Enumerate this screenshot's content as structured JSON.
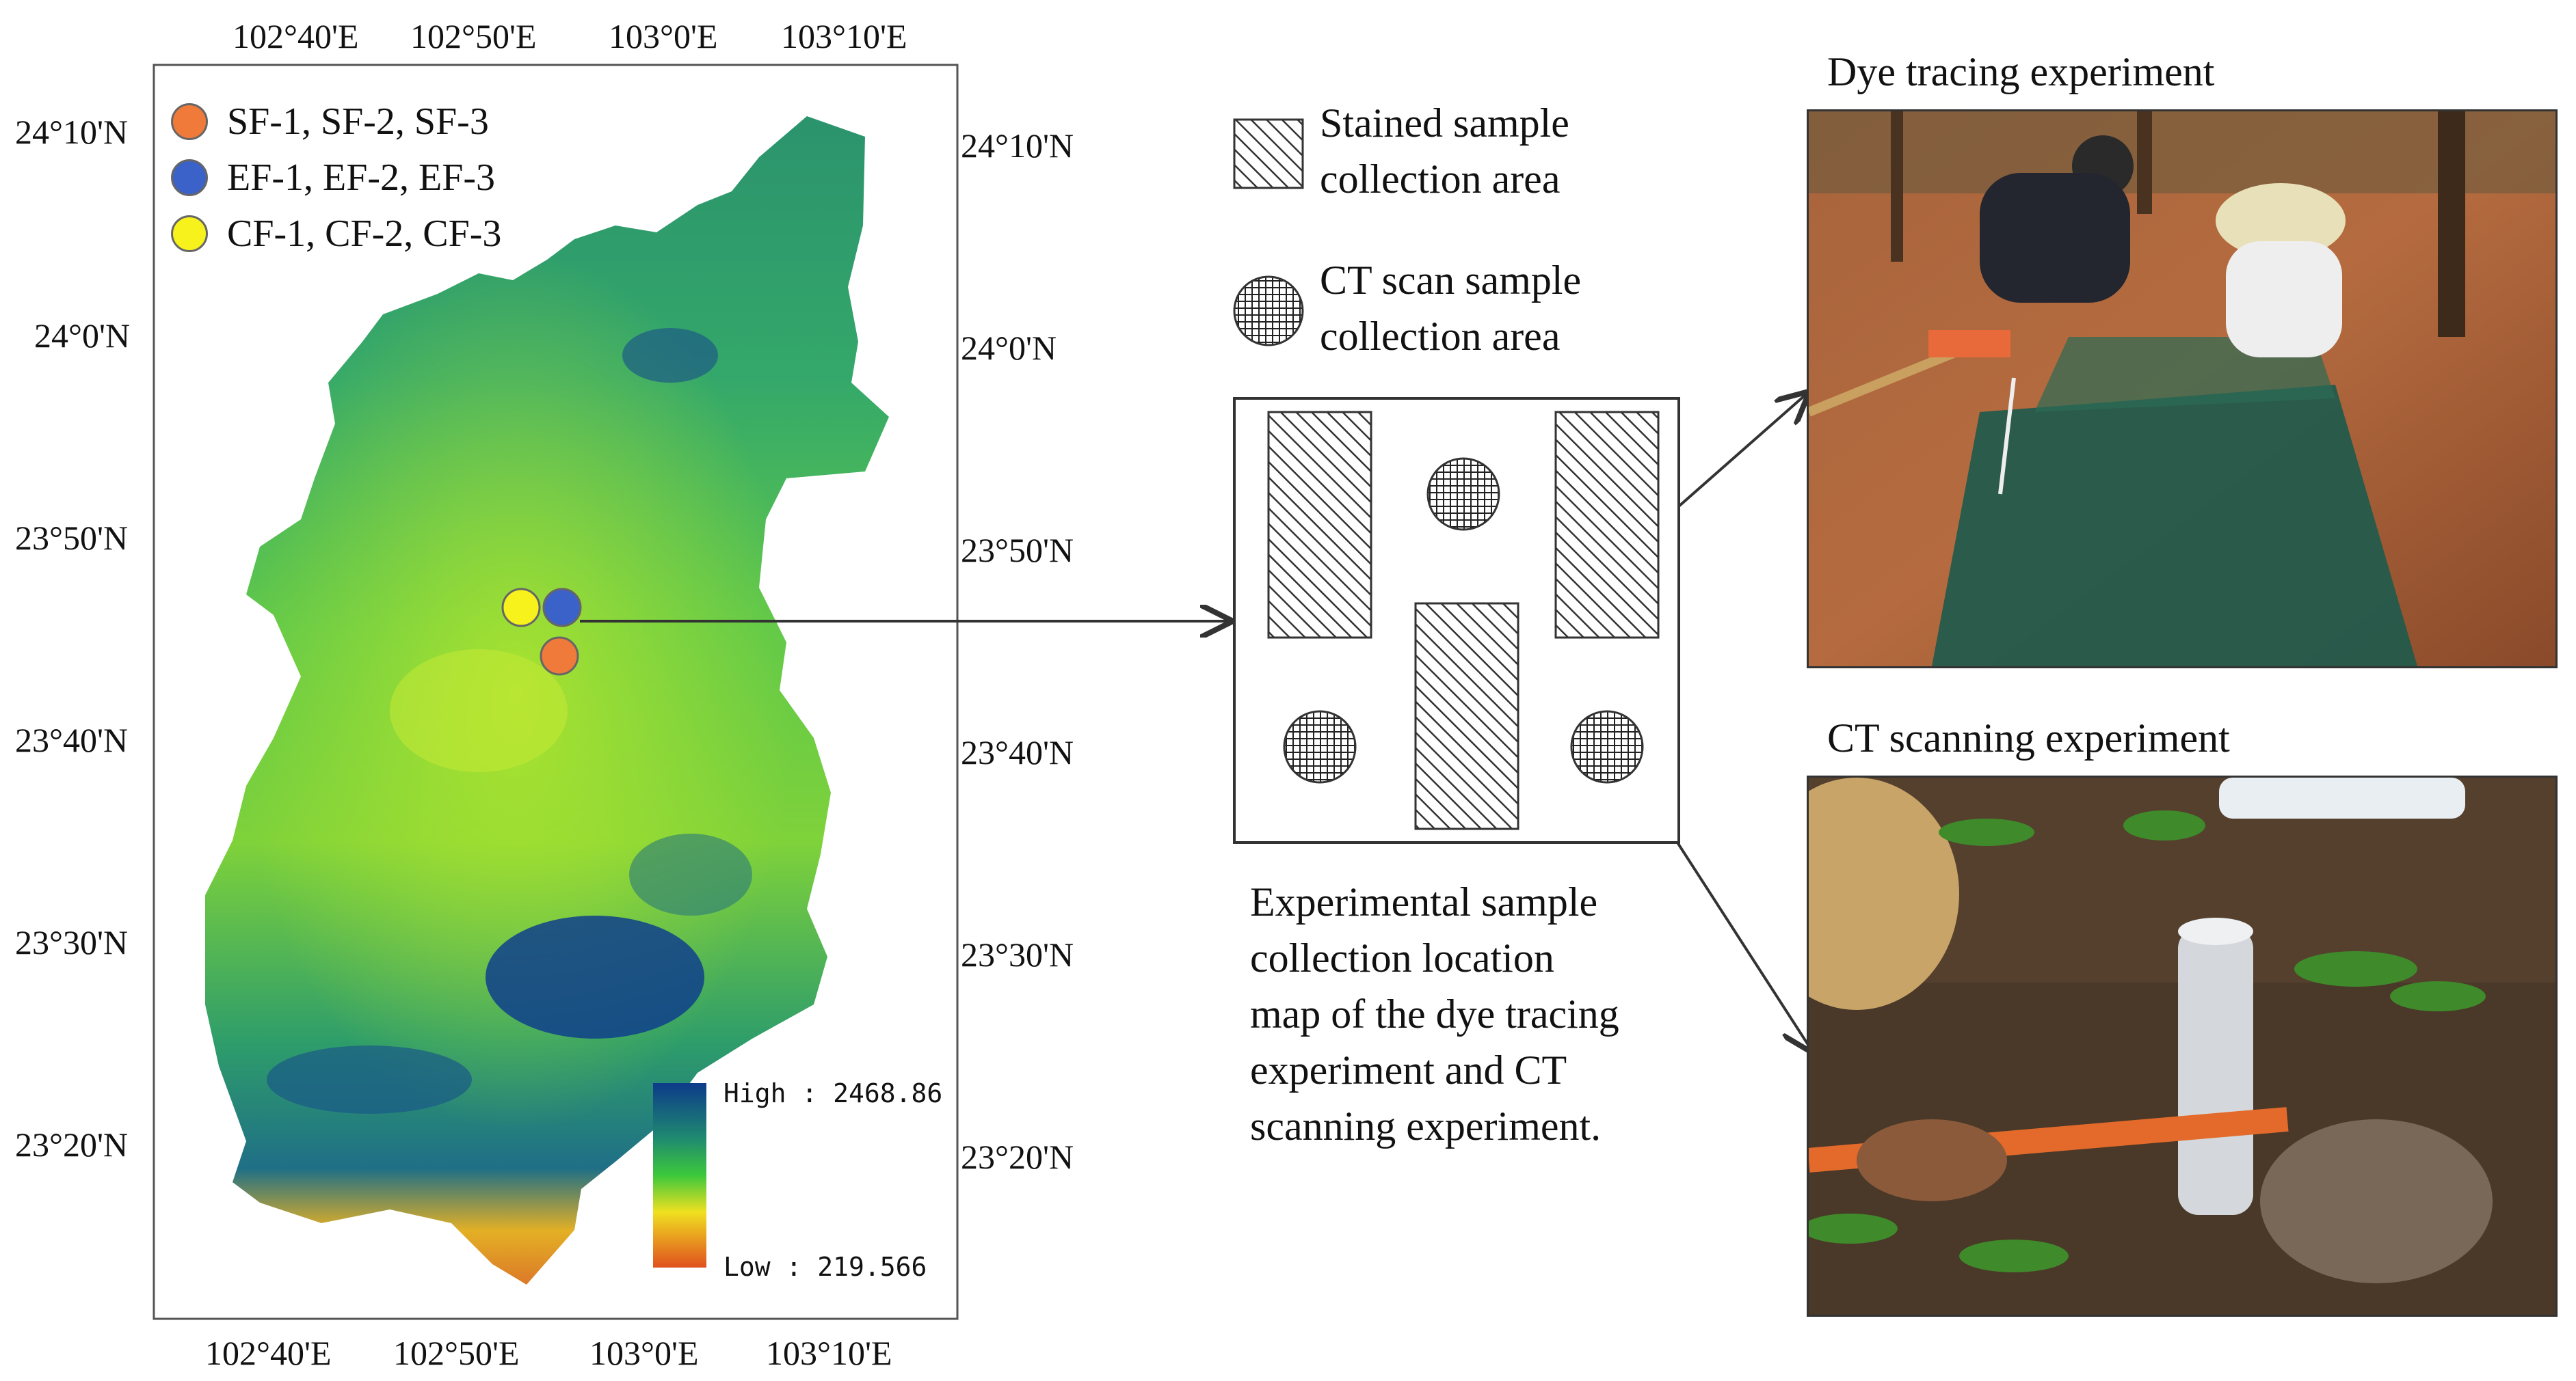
{
  "map": {
    "top_lon_labels": [
      "102°40'E",
      "102°50'E",
      "103°0'E",
      "103°10'E"
    ],
    "bottom_lon_labels": [
      "102°40'E",
      "102°50'E",
      "103°0'E",
      "103°10'E"
    ],
    "left_lat_labels": [
      "24°10'N",
      "24°0'N",
      "23°50'N",
      "23°40'N",
      "23°30'N",
      "23°20'N"
    ],
    "right_lat_labels": [
      "24°10'N",
      "24°0'N",
      "23°50'N",
      "23°40'N",
      "23°30'N",
      "23°20'N"
    ],
    "legend": [
      {
        "label": "SF-1, SF-2, SF-3",
        "color": "#f07a3a"
      },
      {
        "label": "EF-1, EF-2, EF-3",
        "color": "#3b62c8"
      },
      {
        "label": "CF-1, CF-2, CF-3",
        "color": "#f7f21c"
      }
    ],
    "colorbar": {
      "high_label": "High : 2468.86",
      "low_label": "Low : 219.566"
    }
  },
  "diagram": {
    "stained_label": [
      "Stained sample",
      "collection area"
    ],
    "ct_label": [
      "CT scan sample",
      "collection area"
    ],
    "caption": [
      "Experimental sample",
      "collection location",
      "map of the dye tracing",
      "experiment and CT",
      "scanning experiment."
    ]
  },
  "photos": {
    "dye_title": "Dye tracing experiment",
    "ct_title": "CT scanning experiment"
  }
}
